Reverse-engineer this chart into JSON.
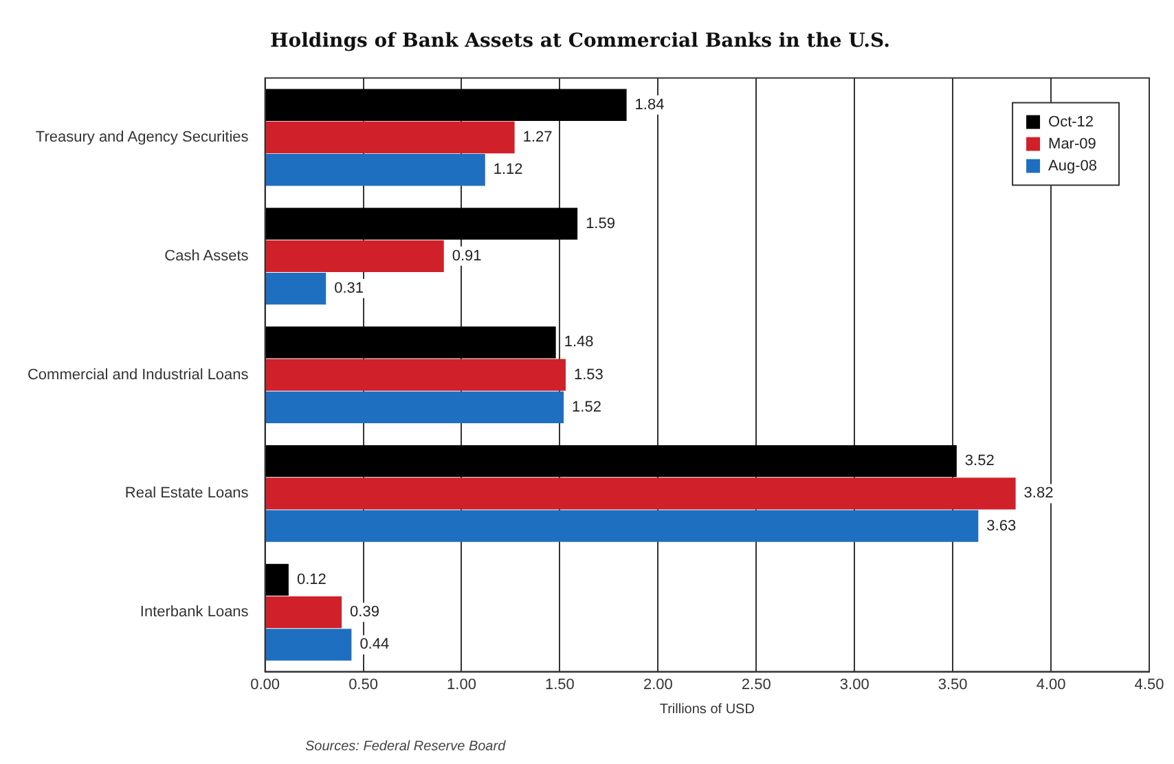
{
  "chart_data": {
    "type": "bar",
    "orientation": "horizontal",
    "title": "Holdings of Bank Assets at Commercial Banks in the U.S.",
    "xlabel": "Trillions of USD",
    "categories": [
      "Treasury and Agency Securities",
      "Cash Assets",
      "Commercial and Industrial Loans",
      "Real Estate Loans",
      "Interbank Loans"
    ],
    "series": [
      {
        "name": "Oct-12",
        "color": "#000000",
        "values": [
          1.84,
          1.59,
          1.48,
          3.52,
          0.12
        ]
      },
      {
        "name": "Mar-09",
        "color": "#d0202a",
        "values": [
          1.27,
          0.91,
          1.53,
          3.82,
          0.39
        ]
      },
      {
        "name": "Aug-08",
        "color": "#1f6fc0",
        "values": [
          1.12,
          0.31,
          1.52,
          3.63,
          0.44
        ]
      }
    ],
    "xlim": [
      0,
      4.5
    ],
    "xticks": [
      {
        "value": 0,
        "label": "0.00"
      },
      {
        "value": 0.5,
        "label": "0.50"
      },
      {
        "value": 1,
        "label": "1.00"
      },
      {
        "value": 1.5,
        "label": "1.50"
      },
      {
        "value": 2,
        "label": "2.00"
      },
      {
        "value": 2.5,
        "label": "2.50"
      },
      {
        "value": 3,
        "label": "3.00"
      },
      {
        "value": 3.5,
        "label": "3.50"
      },
      {
        "value": 4,
        "label": "4.00"
      },
      {
        "value": 4.5,
        "label": "4.50"
      }
    ],
    "grid": "x",
    "legend": "top right",
    "data_labels": true,
    "annotations": [
      "Sources: Federal Reserve Board"
    ]
  }
}
